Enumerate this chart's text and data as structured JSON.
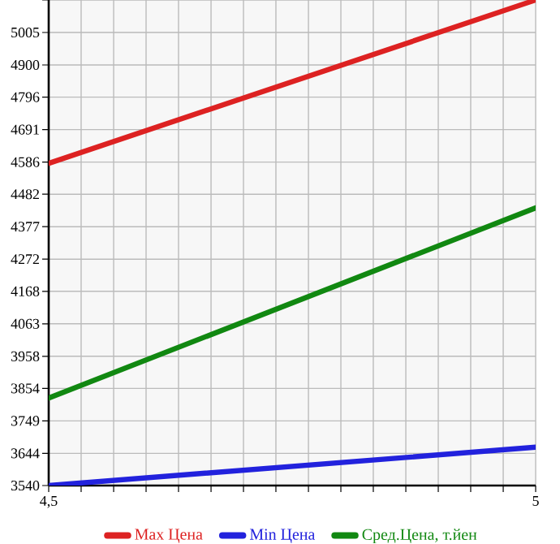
{
  "chart_data": {
    "type": "line",
    "x": [
      4.5,
      5
    ],
    "xlim": [
      4.5,
      5
    ],
    "ylim": [
      3540,
      5110
    ],
    "xticks": [
      {
        "value": 4.5,
        "label": "4,5"
      },
      {
        "value": 4.5333,
        "label": null
      },
      {
        "value": 4.5667,
        "label": null
      },
      {
        "value": 4.6,
        "label": null
      },
      {
        "value": 4.6333,
        "label": null
      },
      {
        "value": 4.6667,
        "label": null
      },
      {
        "value": 4.7,
        "label": null
      },
      {
        "value": 4.7333,
        "label": null
      },
      {
        "value": 4.7667,
        "label": null
      },
      {
        "value": 4.8,
        "label": null
      },
      {
        "value": 4.8333,
        "label": null
      },
      {
        "value": 4.8667,
        "label": null
      },
      {
        "value": 4.9,
        "label": null
      },
      {
        "value": 4.9333,
        "label": null
      },
      {
        "value": 4.9667,
        "label": null
      },
      5
    ],
    "yticks": [
      3540,
      3644,
      3749,
      3854,
      3958,
      4063,
      4168,
      4272,
      4377,
      4482,
      4586,
      4691,
      4796,
      4900,
      5005,
      {
        "value": 5110,
        "label": null
      }
    ],
    "grid": true,
    "legend": "bottom",
    "series": [
      {
        "name": "Max Цена",
        "color": "#dd2222",
        "values": [
          4582,
          5110
        ]
      },
      {
        "name": "Min Цена",
        "color": "#2222dd",
        "values": [
          3540,
          3664
        ]
      },
      {
        "name": "Сред.Цена, т.йен",
        "color": "#118811",
        "values": [
          3823,
          4438
        ]
      }
    ]
  }
}
